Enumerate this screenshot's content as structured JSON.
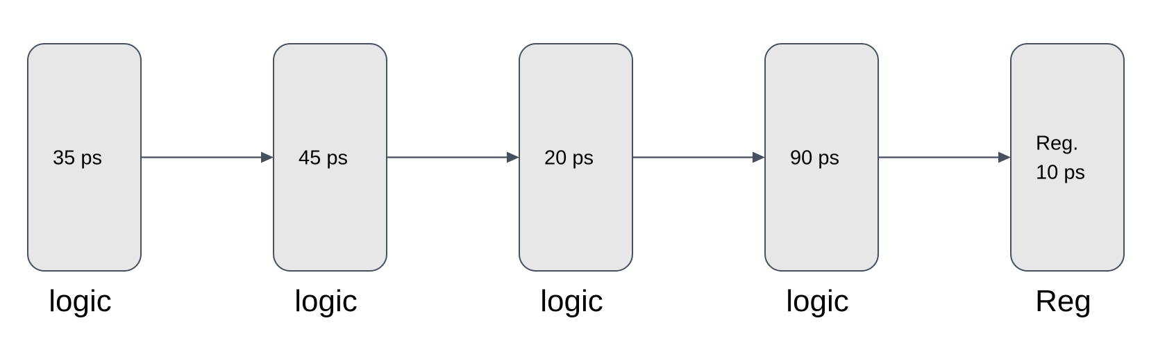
{
  "blocks": [
    {
      "lines": [
        "35 ps"
      ],
      "caption": "logic"
    },
    {
      "lines": [
        "45 ps"
      ],
      "caption": "logic"
    },
    {
      "lines": [
        "20 ps"
      ],
      "caption": "logic"
    },
    {
      "lines": [
        "90 ps"
      ],
      "caption": "logic"
    },
    {
      "lines": [
        "Reg.",
        "10 ps"
      ],
      "caption": "Reg"
    }
  ],
  "connectors": [
    {
      "from": 0,
      "to": 1
    },
    {
      "from": 1,
      "to": 2
    },
    {
      "from": 2,
      "to": 3
    },
    {
      "from": 3,
      "to": 4
    }
  ],
  "colors": {
    "block_fill": "#e7e7e7",
    "stroke": "#47505e",
    "text": "#000000"
  }
}
